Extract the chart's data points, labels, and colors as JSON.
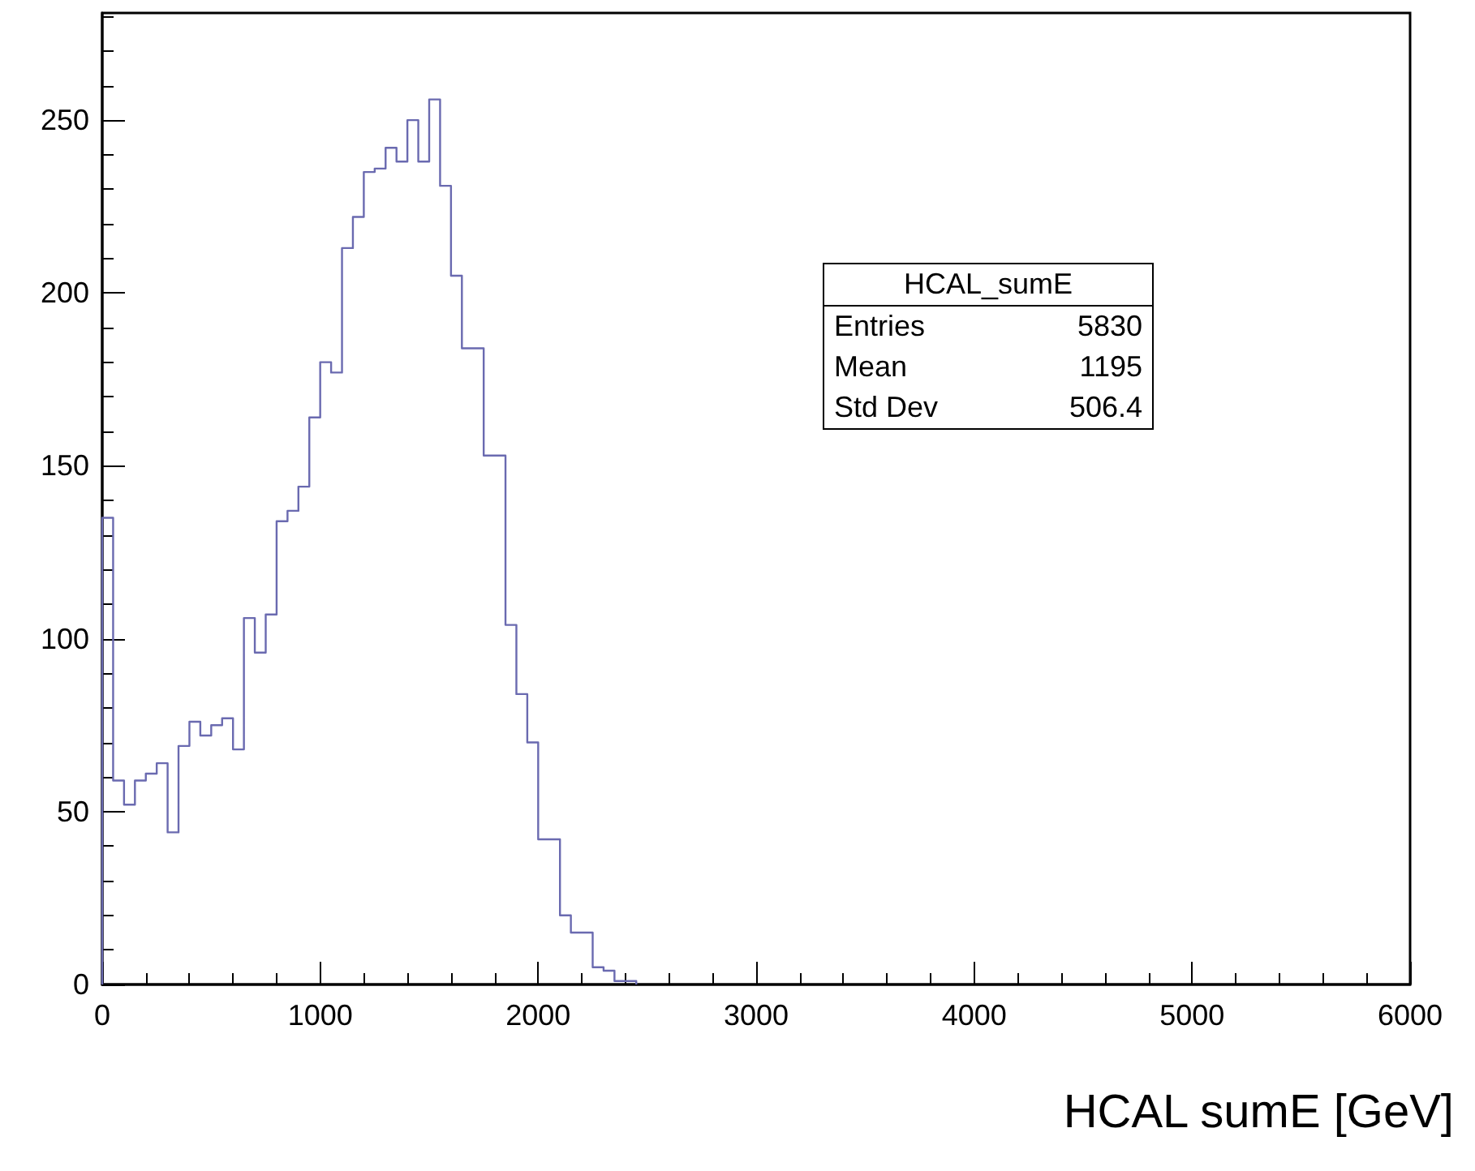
{
  "chart_data": {
    "type": "histogram",
    "xlabel": "HCAL sumE [GeV]",
    "bins": [
      0,
      50,
      100,
      150,
      200,
      250,
      300,
      350,
      400,
      450,
      500,
      550,
      600,
      650,
      700,
      750,
      800,
      850,
      900,
      950,
      1000,
      1050,
      1100,
      1150,
      1200,
      1250,
      1300,
      1350,
      1400,
      1450,
      1500,
      1550,
      1600,
      1650,
      1700,
      1750,
      1800,
      1850,
      1900,
      1950,
      2000,
      2050,
      2100,
      2150,
      2200,
      2250,
      2300,
      2350,
      2400,
      2450
    ],
    "values": [
      135,
      59,
      52,
      59,
      61,
      64,
      44,
      69,
      76,
      72,
      75,
      77,
      68,
      106,
      96,
      107,
      134,
      137,
      144,
      164,
      180,
      177,
      213,
      222,
      235,
      236,
      242,
      238,
      250,
      238,
      256,
      231,
      205,
      184,
      184,
      153,
      153,
      104,
      84,
      70,
      42,
      42,
      20,
      15,
      15,
      5,
      4,
      1,
      1
    ],
    "color": "#6a6ab0",
    "xlim": [
      0,
      6000
    ],
    "xticks": [
      0,
      1000,
      2000,
      3000,
      4000,
      5000,
      6000
    ],
    "ylim": [
      0,
      281
    ],
    "yticks": [
      0,
      50,
      100,
      150,
      200,
      250
    ],
    "grid": false,
    "annotations": [
      "HCAL_sumE",
      "Entries",
      "5830",
      "Mean",
      "1195",
      "Std Dev",
      "506.4"
    ]
  }
}
